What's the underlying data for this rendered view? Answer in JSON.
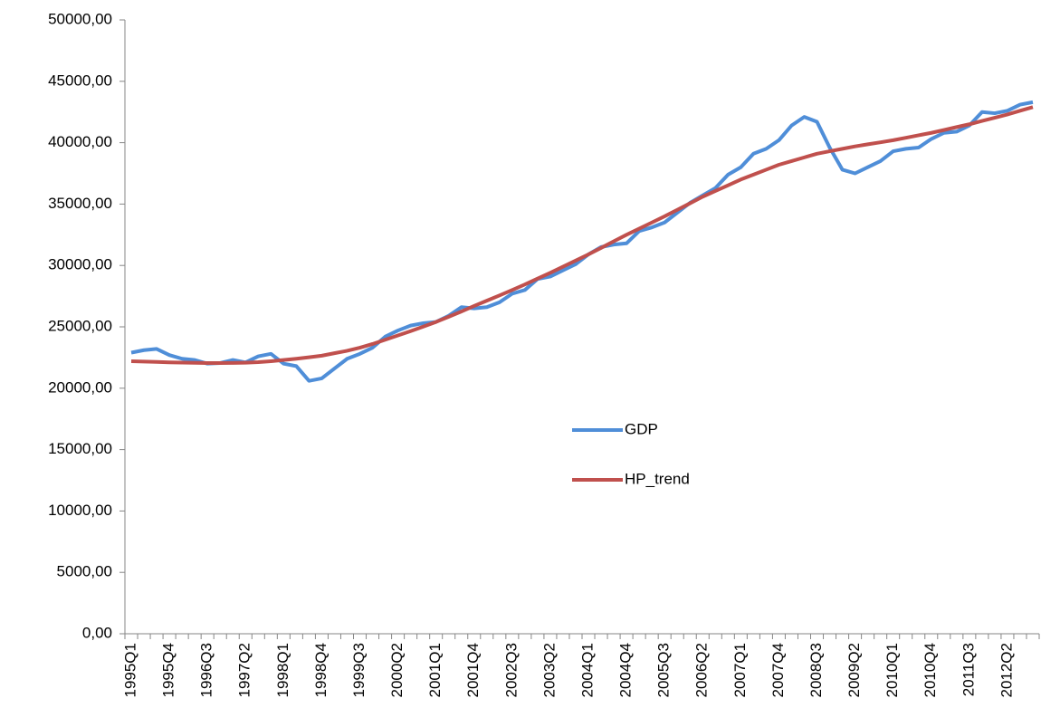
{
  "chart_data": {
    "type": "line",
    "categories": [
      "1995Q1",
      null,
      null,
      "1995Q4",
      null,
      null,
      "1996Q3",
      null,
      null,
      "1997Q2",
      null,
      null,
      "1998Q1",
      null,
      null,
      "1998Q4",
      null,
      null,
      "1999Q3",
      null,
      null,
      "2000Q2",
      null,
      null,
      "2001Q1",
      null,
      null,
      "2001Q4",
      null,
      null,
      "2002Q3",
      null,
      null,
      "2003Q2",
      null,
      null,
      "2004Q1",
      null,
      null,
      "2004Q4",
      null,
      null,
      "2005Q3",
      null,
      null,
      "2006Q2",
      null,
      null,
      "2007Q1",
      null,
      null,
      "2007Q4",
      null,
      null,
      "2008Q3",
      null,
      null,
      "2009Q2",
      null,
      null,
      "2010Q1",
      null,
      null,
      "2010Q4",
      null,
      null,
      "2011Q3",
      null,
      null,
      "2012Q2",
      null,
      null
    ],
    "series": [
      {
        "name": "GDP",
        "color": "#4f8ed8",
        "values": [
          22900,
          23100,
          23200,
          22700,
          22400,
          22300,
          22000,
          22050,
          22300,
          22100,
          22600,
          22800,
          22000,
          21800,
          20600,
          20800,
          21600,
          22400,
          22800,
          23300,
          24200,
          24700,
          25100,
          25300,
          25400,
          25900,
          26600,
          26500,
          26600,
          27000,
          27700,
          28000,
          28900,
          29100,
          29600,
          30100,
          30900,
          31500,
          31700,
          31800,
          32800,
          33100,
          33500,
          34300,
          35100,
          35700,
          36300,
          37400,
          38000,
          39100,
          39500,
          40200,
          41400,
          42100,
          41700,
          39600,
          37800,
          37500,
          38000,
          38500,
          39300,
          39500,
          39600,
          40300,
          40800,
          40900,
          41400,
          42500,
          42400,
          42600,
          43100,
          43300
        ]
      },
      {
        "name": "HP_trend",
        "color": "#c0504d",
        "values": [
          22200,
          22170,
          22140,
          22110,
          22090,
          22070,
          22050,
          22050,
          22060,
          22080,
          22120,
          22200,
          22300,
          22400,
          22520,
          22650,
          22850,
          23050,
          23300,
          23600,
          23950,
          24300,
          24650,
          25020,
          25400,
          25820,
          26250,
          26700,
          27130,
          27560,
          28000,
          28450,
          28930,
          29400,
          29900,
          30400,
          30900,
          31430,
          31970,
          32500,
          33000,
          33500,
          34000,
          34530,
          35060,
          35600,
          36070,
          36530,
          37000,
          37400,
          37800,
          38200,
          38500,
          38800,
          39100,
          39300,
          39500,
          39700,
          39870,
          40030,
          40200,
          40400,
          40600,
          40800,
          41030,
          41270,
          41500,
          41770,
          42030,
          42300,
          42600,
          42900
        ]
      }
    ],
    "ylim": [
      0,
      50000
    ],
    "yticks": [
      {
        "value": 0,
        "label": "0,00"
      },
      {
        "value": 5000,
        "label": "5000,00"
      },
      {
        "value": 10000,
        "label": "10000,00"
      },
      {
        "value": 15000,
        "label": "15000,00"
      },
      {
        "value": 20000,
        "label": "20000,00"
      },
      {
        "value": 25000,
        "label": "25000,00"
      },
      {
        "value": 30000,
        "label": "30000,00"
      },
      {
        "value": 35000,
        "label": "35000,00"
      },
      {
        "value": 40000,
        "label": "40000,00"
      },
      {
        "value": 45000,
        "label": "45000,00"
      },
      {
        "value": 50000,
        "label": "50000,00"
      }
    ],
    "grid": false,
    "legend_position": "center"
  }
}
